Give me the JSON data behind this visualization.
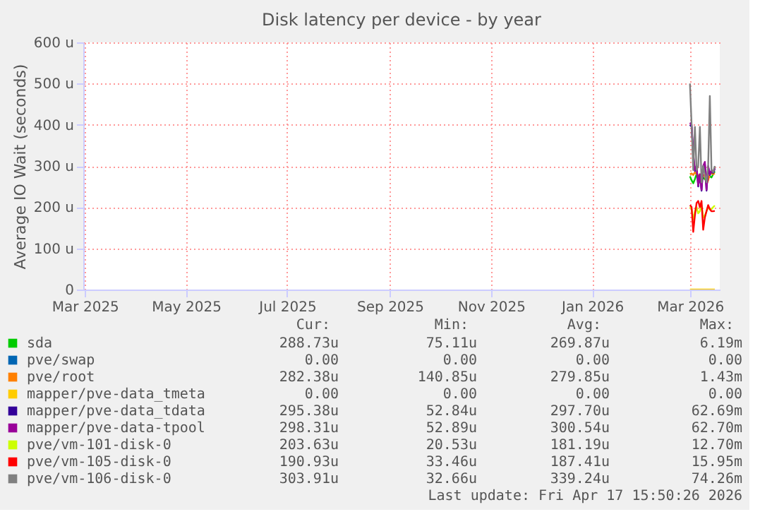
{
  "chart_data": {
    "type": "line",
    "title": "Disk latency per device - by year",
    "ylabel": "Average IO Wait (seconds)",
    "x": [
      "2026-03-01",
      "2026-03-02",
      "2026-03-03",
      "2026-03-04",
      "2026-03-05",
      "2026-03-06",
      "2026-03-07",
      "2026-03-08",
      "2026-03-09",
      "2026-03-10",
      "2026-03-11",
      "2026-03-12",
      "2026-03-13",
      "2026-03-14",
      "2026-03-15",
      "2026-03-16"
    ],
    "xlim": [
      "2025-02-28",
      "2026-03-19"
    ],
    "xticks": [
      {
        "value": "2025-03-01",
        "label": "Mar 2025"
      },
      {
        "value": "2025-05-01",
        "label": "May 2025"
      },
      {
        "value": "2025-07-01",
        "label": "Jul 2025"
      },
      {
        "value": "2025-09-01",
        "label": "Sep 2025"
      },
      {
        "value": "2025-11-01",
        "label": "Nov 2025"
      },
      {
        "value": "2026-01-01",
        "label": "Jan 2026"
      },
      {
        "value": "2026-03-01",
        "label": "Mar 2026"
      }
    ],
    "ylim": [
      0,
      600
    ],
    "yticks": [
      {
        "value": 0,
        "label": "0"
      },
      {
        "value": 100,
        "label": "100 u"
      },
      {
        "value": 200,
        "label": "200 u"
      },
      {
        "value": 300,
        "label": "300 u"
      },
      {
        "value": 400,
        "label": "400 u"
      },
      {
        "value": 500,
        "label": "500 u"
      },
      {
        "value": 600,
        "label": "600 u"
      }
    ],
    "grid": true,
    "legend": "bottom",
    "marker": "none",
    "line_style": "solid",
    "series": [
      {
        "name": "sda",
        "color": "#00cc00",
        "values": [
          275,
          265,
          258,
          268,
          280,
          275,
          270,
          265,
          272,
          268,
          262,
          270,
          275,
          272,
          280,
          287
        ]
      },
      {
        "name": "pve/swap",
        "color": "#0066b3",
        "values": [
          null,
          null,
          null,
          null,
          null,
          null,
          null,
          null,
          null,
          null,
          null,
          null,
          null,
          null,
          null,
          null
        ]
      },
      {
        "name": "pve/root",
        "color": "#ff8000",
        "values": [
          280,
          282,
          278,
          285,
          280,
          275,
          280,
          270,
          275,
          280,
          255,
          265,
          280,
          282,
          280,
          282
        ]
      },
      {
        "name": "mapper/pve-data_tmeta",
        "color": "#ffcc00",
        "values": [
          0,
          0,
          0,
          0,
          0,
          0,
          0,
          0,
          0,
          0,
          0,
          0,
          0,
          0,
          0,
          0
        ]
      },
      {
        "name": "mapper/pve-data_tdata",
        "color": "#330099",
        "values": [
          400,
          395,
          325,
          288,
          298,
          250,
          278,
          240,
          298,
          305,
          240,
          298,
          278,
          288,
          283,
          293
        ]
      },
      {
        "name": "mapper/pve-data-tpool",
        "color": "#990099",
        "values": [
          405,
          400,
          330,
          290,
          300,
          252,
          280,
          242,
          300,
          310,
          242,
          300,
          280,
          290,
          285,
          295
        ]
      },
      {
        "name": "pve/vm-101-disk-0",
        "color": "#ccff00",
        "values": [
          200,
          195,
          170,
          190,
          200,
          185,
          190,
          205,
          175,
          180,
          190,
          200,
          195,
          195,
          200,
          204
        ]
      },
      {
        "name": "pve/vm-105-disk-0",
        "color": "#ff0000",
        "values": [
          205,
          200,
          140,
          180,
          210,
          215,
          200,
          215,
          145,
          175,
          190,
          205,
          195,
          190,
          190,
          191
        ]
      },
      {
        "name": "pve/vm-106-disk-0",
        "color": "#808080",
        "values": [
          500,
          400,
          290,
          395,
          290,
          300,
          395,
          260,
          300,
          280,
          260,
          300,
          470,
          290,
          285,
          300
        ]
      }
    ],
    "annotations": [
      "Cur:",
      "Min:",
      "Avg:",
      "Max:",
      "288.73u",
      "75.11u",
      "269.87u",
      "6.19m",
      "0.00",
      "0.00",
      "0.00",
      "0.00",
      "282.38u",
      "140.85u",
      "279.85u",
      "1.43m",
      "0.00",
      "0.00",
      "0.00",
      "0.00",
      "295.38u",
      "52.84u",
      "297.70u",
      "62.69m",
      "298.31u",
      "52.89u",
      "300.54u",
      "62.70m",
      "203.63u",
      "20.53u",
      "181.19u",
      "12.70m",
      "190.93u",
      "33.46u",
      "187.41u",
      "15.95m",
      "303.91u",
      "32.66u",
      "339.24u",
      "74.26m",
      "Last update: Fri Apr 17 15:50:26 2026"
    ]
  }
}
